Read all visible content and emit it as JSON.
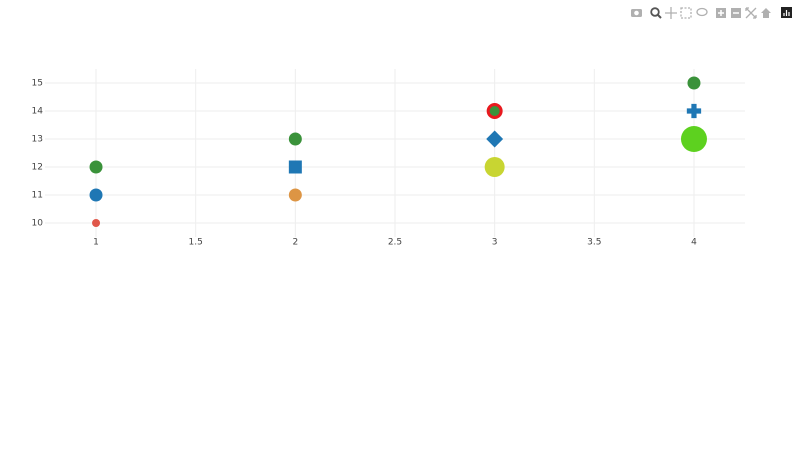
{
  "chart_data": {
    "type": "scatter",
    "x": [
      1,
      2,
      3,
      4
    ],
    "series": [
      {
        "values": [
          10,
          11,
          12,
          13
        ],
        "colors": [
          "#e0574a",
          "#dd9544",
          "#c8d532",
          "#5dd11f"
        ],
        "sizes": [
          8,
          13,
          20,
          26
        ],
        "symbol": "circle"
      },
      {
        "values": [
          11,
          12,
          13,
          14
        ],
        "color": "#1f77b4",
        "symbols": [
          "circle",
          "square",
          "diamond",
          "cross"
        ],
        "size": 13
      },
      {
        "values": [
          12,
          13,
          14,
          15
        ],
        "color": "#3a923a",
        "size": 13,
        "outline_colors": [
          null,
          null,
          "#e8191e",
          null
        ]
      }
    ],
    "xlim": [
      0.744,
      4.256
    ],
    "xticks": [
      1,
      1.5,
      2,
      2.5,
      3,
      3.5,
      4
    ],
    "ylim": [
      9.5,
      15.5
    ],
    "yticks": [
      10,
      11,
      12,
      13,
      14,
      15
    ],
    "grid": true
  }
}
